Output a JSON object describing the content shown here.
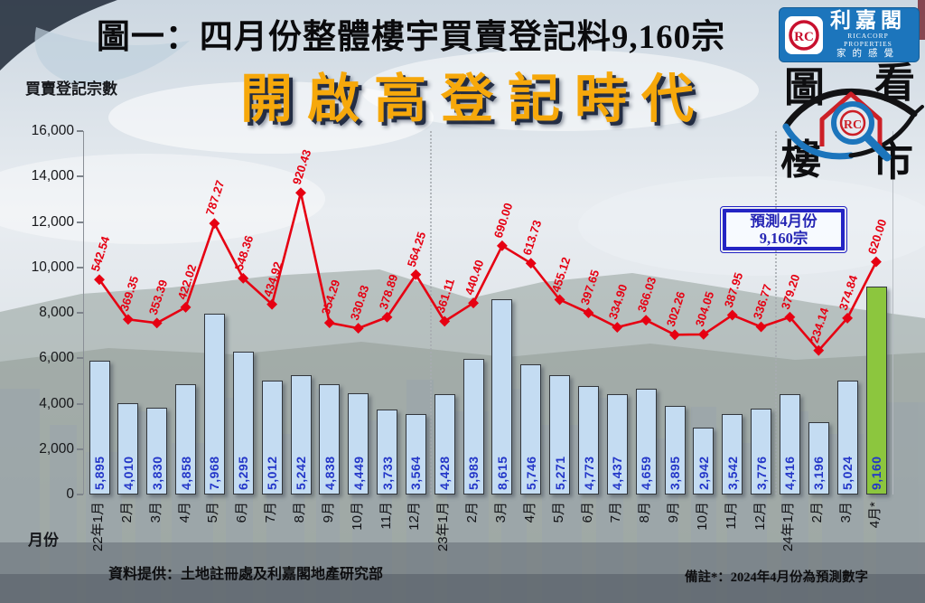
{
  "header": {
    "title": "圖一：四月份整體樓宇買賣登記料9,160宗",
    "subtitle": "開啟高登記時代"
  },
  "logo": {
    "emblem_monogram": "RC",
    "brand_cn": "利嘉閣",
    "brand_en": "RICACORP PROPERTIES",
    "brand_slogan": "家的感覺",
    "eye_chars": {
      "0": "圖",
      "1": "看",
      "2": "樓",
      "3": "市"
    },
    "eye_monogram": "RC"
  },
  "annotation_box": {
    "line1": "預測4月份",
    "line2": "9,160宗"
  },
  "footer": {
    "source": "資料提供：土地註冊處及利嘉閣地產研究部",
    "note": "備註*：2024年4月份為預測數字"
  },
  "chart_data": {
    "type": "bar+line",
    "title": "圖一：四月份整體樓宇買賣登記料9,160宗",
    "ylabel": "買賣登記宗數",
    "xlabel": "月份",
    "ylim": [
      0,
      16000
    ],
    "ytick_labels": [
      "0",
      "2,000",
      "4,000",
      "6,000",
      "8,000",
      "10,000",
      "12,000",
      "14,000",
      "16,000"
    ],
    "grid": "off",
    "legend": "none",
    "categories": [
      "22年1月",
      "2月",
      "3月",
      "4月",
      "5月",
      "6月",
      "7月",
      "8月",
      "9月",
      "10月",
      "11月",
      "12月",
      "23年1月",
      "2月",
      "3月",
      "4月",
      "5月",
      "6月",
      "7月",
      "8月",
      "9月",
      "10月",
      "11月",
      "12月",
      "24年1月",
      "2月",
      "3月",
      "4月*"
    ],
    "bars": {
      "values": [
        5895,
        4010,
        3830,
        4858,
        7968,
        6295,
        5012,
        5242,
        4838,
        4449,
        3733,
        3564,
        4428,
        5983,
        8615,
        5746,
        5271,
        4773,
        4437,
        4659,
        3895,
        2942,
        3542,
        3776,
        4416,
        3196,
        5024,
        9160
      ],
      "labels": [
        "5,895",
        "4,010",
        "3,830",
        "4,858",
        "7,968",
        "6,295",
        "5,012",
        "5,242",
        "4,838",
        "4,449",
        "3,733",
        "3,564",
        "4,428",
        "5,983",
        "8,615",
        "5,746",
        "5,271",
        "4,773",
        "4,437",
        "4,659",
        "3,895",
        "2,942",
        "3,542",
        "3,776",
        "4,416",
        "3,196",
        "5,024",
        "9,160"
      ],
      "highlight_index": 27,
      "highlight_meaning": "預測"
    },
    "line": {
      "values": [
        542.54,
        369.35,
        353.39,
        422.02,
        787.27,
        548.36,
        434.92,
        920.43,
        354.29,
        330.83,
        378.89,
        564.25,
        361.11,
        440.4,
        690.0,
        613.73,
        455.12,
        397.65,
        334.9,
        366.03,
        302.26,
        304.05,
        387.95,
        336.77,
        379.2,
        234.14,
        374.84,
        620.0
      ],
      "labels": [
        "542.54",
        "369.35",
        "353.39",
        "422.02",
        "787.27",
        "548.36",
        "434.92",
        "920.43",
        "354.29",
        "330.83",
        "378.89",
        "564.25",
        "361.11",
        "440.40",
        "690.00",
        "613.73",
        "455.12",
        "397.65",
        "334.90",
        "366.03",
        "302.26",
        "304.05",
        "387.95",
        "336.77",
        "379.20",
        "234.14",
        "374.84",
        "620.00"
      ]
    },
    "year_separators_after_index": [
      11,
      23
    ]
  },
  "colors": {
    "bar_fill": "#C4DCF2",
    "bar_highlight": "#8CC63E",
    "line_red": "#E60012",
    "bar_value_text": "#2336C8",
    "gold": "#F6A80B",
    "brand_blue": "#1C75BC",
    "annotation_blue": "#2424C4"
  }
}
